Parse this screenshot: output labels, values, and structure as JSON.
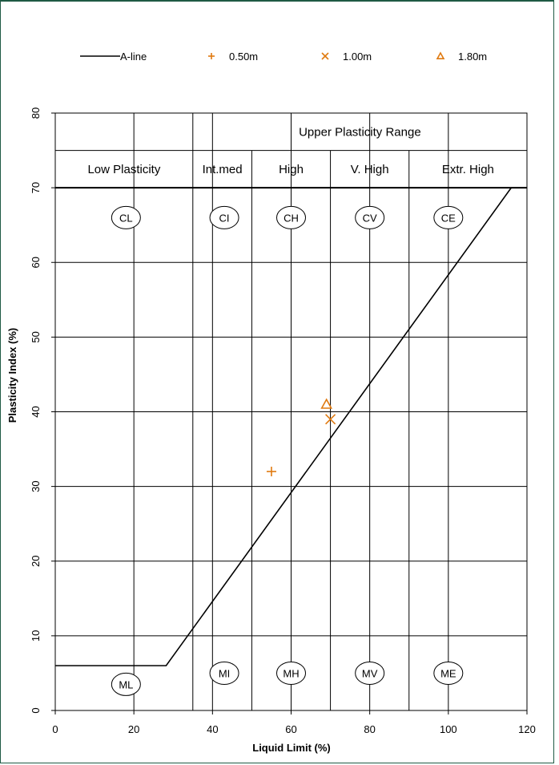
{
  "chart_data": {
    "type": "scatter",
    "xlabel": "Liquid Limit (%)",
    "ylabel": "Plasticity Index (%)",
    "xlim": [
      0,
      120
    ],
    "ylim": [
      0,
      80
    ],
    "x_ticks": [
      "0",
      "20",
      "40",
      "60",
      "80",
      "100",
      "120"
    ],
    "y_ticks": [
      "0",
      "10",
      "20",
      "30",
      "40",
      "50",
      "60",
      "70",
      "80"
    ],
    "grid": true,
    "legend_position": "top",
    "legend": [
      {
        "label": "A-line",
        "marker": "line",
        "color": "#000000"
      },
      {
        "label": "0.50m",
        "marker": "plus",
        "color": "#e07a10"
      },
      {
        "label": "1.00m",
        "marker": "x",
        "color": "#e07a10"
      },
      {
        "label": "1.80m",
        "marker": "triangle",
        "color": "#e07a10"
      }
    ],
    "a_line": [
      [
        0,
        6
      ],
      [
        28.2,
        6
      ],
      [
        116,
        70
      ]
    ],
    "series": [
      {
        "name": "0.50m",
        "marker": "plus",
        "points": [
          [
            55,
            32
          ]
        ]
      },
      {
        "name": "1.00m",
        "marker": "x",
        "points": [
          [
            70,
            39
          ]
        ]
      },
      {
        "name": "1.80m",
        "marker": "triangle",
        "points": [
          [
            69,
            41
          ]
        ]
      }
    ],
    "plasticity_boundaries": [
      35,
      50,
      70,
      90
    ],
    "band_lines_y": [
      75,
      70
    ],
    "upper_range_label": "Upper Plasticity Range",
    "ranges": [
      {
        "label": "Low Plasticity",
        "x": 17.5
      },
      {
        "label": "Int.med",
        "x": 42.5
      },
      {
        "label": "High",
        "x": 60
      },
      {
        "label": "V. High",
        "x": 80
      },
      {
        "label": "Extr. High",
        "x": 105
      }
    ],
    "zones_upper": [
      {
        "label": "CL",
        "x": 18,
        "y": 66
      },
      {
        "label": "CI",
        "x": 43,
        "y": 66
      },
      {
        "label": "CH",
        "x": 60,
        "y": 66
      },
      {
        "label": "CV",
        "x": 80,
        "y": 66
      },
      {
        "label": "CE",
        "x": 100,
        "y": 66
      }
    ],
    "zones_lower": [
      {
        "label": "ML",
        "x": 18,
        "y": 3.5
      },
      {
        "label": "MI",
        "x": 43,
        "y": 5
      },
      {
        "label": "MH",
        "x": 60,
        "y": 5
      },
      {
        "label": "MV",
        "x": 80,
        "y": 5
      },
      {
        "label": "ME",
        "x": 100,
        "y": 5
      }
    ],
    "marker_color": "#e07a10"
  }
}
